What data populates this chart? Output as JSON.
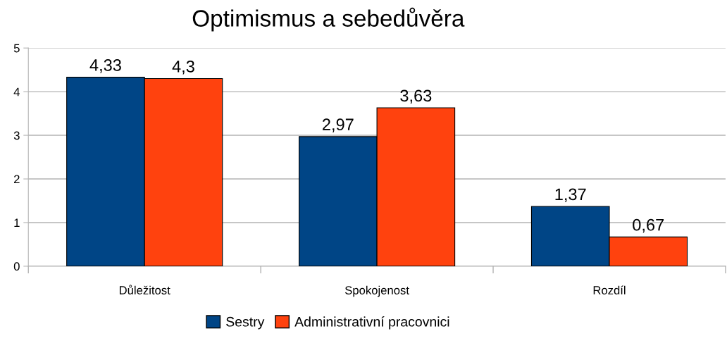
{
  "chart_data": {
    "type": "bar",
    "title": "Optimismus a sebedůvěra",
    "categories": [
      "Důležitost",
      "Spokojenost",
      "Rozdíl"
    ],
    "series": [
      {
        "name": "Sestry",
        "color": "#004586",
        "values": [
          4.33,
          2.97,
          1.37
        ],
        "value_labels": [
          "4,33",
          "2,97",
          "1,37"
        ]
      },
      {
        "name": "Administrativní pracovnici",
        "color": "#ff420e",
        "values": [
          4.3,
          3.63,
          0.67
        ],
        "value_labels": [
          "4,3",
          "3,63",
          "0,67"
        ]
      }
    ],
    "ylim": [
      0,
      5
    ],
    "yticks": [
      0,
      1,
      2,
      3,
      4,
      5
    ],
    "grid": "y",
    "legend": "bottom"
  }
}
